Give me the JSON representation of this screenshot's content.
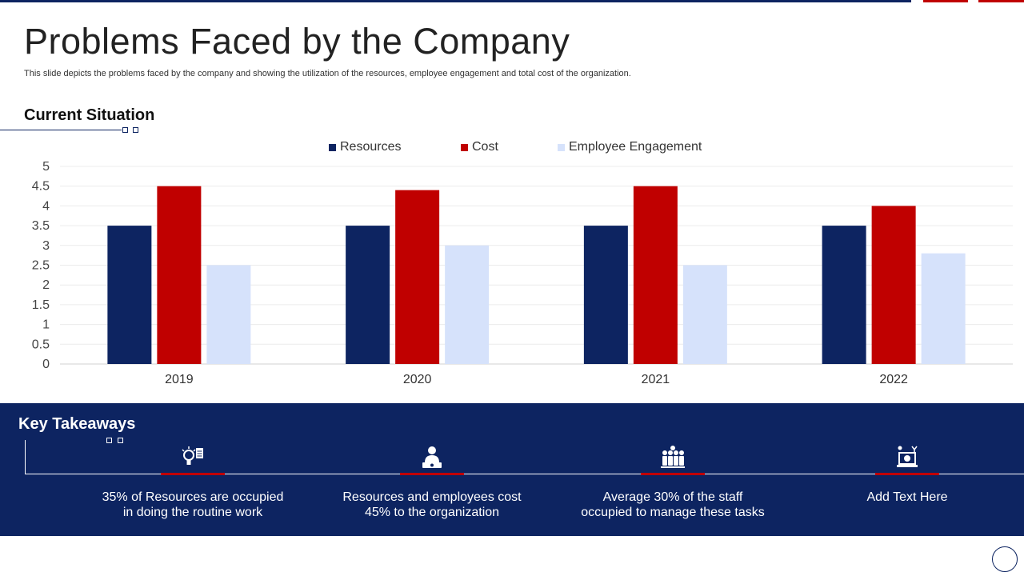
{
  "page": {
    "title": "Problems Faced by the Company",
    "subtitle": "This slide depicts the problems faced by the company and showing the utilization of the resources, employee engagement and total cost of the organization.",
    "section_title": "Current Situation"
  },
  "colors": {
    "navy": "#0d2461",
    "red": "#c00000",
    "light": "#d6e2fb"
  },
  "chart_data": {
    "type": "bar",
    "categories": [
      "2019",
      "2020",
      "2021",
      "2022"
    ],
    "series": [
      {
        "name": "Resources",
        "values": [
          3.5,
          3.5,
          3.5,
          3.5
        ],
        "color": "#0d2461"
      },
      {
        "name": "Cost",
        "values": [
          4.5,
          4.4,
          4.5,
          4.0
        ],
        "color": "#c00000"
      },
      {
        "name": "Employee Engagement",
        "values": [
          2.5,
          3.0,
          2.5,
          2.8
        ],
        "color": "#d6e2fb"
      }
    ],
    "ylim": [
      0,
      5
    ],
    "yticks": [
      "0",
      "0.5",
      "1",
      "1.5",
      "2",
      "2.5",
      "3",
      "3.5",
      "4",
      "4.5",
      "5"
    ],
    "grid": true,
    "legend_position": "top"
  },
  "takeaways": {
    "title": "Key Takeaways",
    "items": [
      {
        "icon": "idea-document-icon",
        "text1": "35% of Resources are occupied",
        "text2": "in doing the routine work"
      },
      {
        "icon": "employee-cost-icon",
        "text1": "Resources and employees cost",
        "text2": "45% to the organization"
      },
      {
        "icon": "staff-group-icon",
        "text1": "Average 30% of the staff",
        "text2": "occupied to manage these tasks"
      },
      {
        "icon": "desk-presentation-icon",
        "text1": "Add Text Here",
        "text2": ""
      }
    ]
  }
}
